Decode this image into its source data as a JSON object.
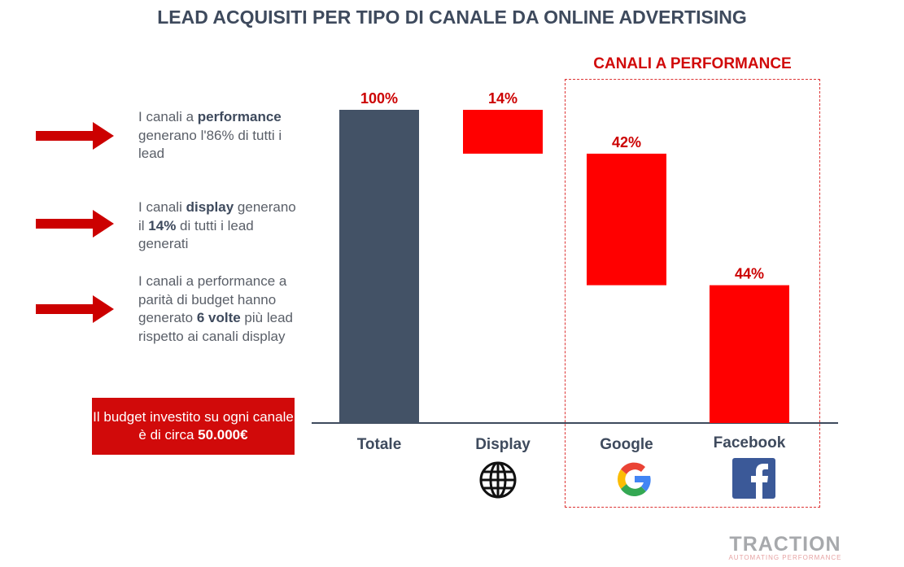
{
  "chart_data": {
    "type": "waterfall",
    "title": "LEAD ACQUISITI PER TIPO DI CANALE DA ONLINE ADVERTISING",
    "categories": [
      "Totale",
      "Display",
      "Google",
      "Facebook"
    ],
    "values": [
      100,
      14,
      42,
      44
    ],
    "labels": [
      "100%",
      "14%",
      "42%",
      "44%"
    ],
    "colors": [
      "#435266",
      "#ff0000",
      "#ff0000",
      "#ff0000"
    ],
    "ylim": [
      0,
      100
    ],
    "group_label": "CANALI A PERFORMANCE",
    "icons": [
      "",
      "globe-icon",
      "google-icon",
      "facebook-icon"
    ]
  },
  "notes": [
    {
      "pre": "I canali a ",
      "bold": "performance",
      "post": " generano l'86% di tutti i lead"
    },
    {
      "pre": "I canali ",
      "bold": "display",
      "mid": " generano il ",
      "bold2": "14%",
      "post": " di tutti i lead generati"
    },
    {
      "pre": "I canali a performance a parità di budget hanno generato ",
      "bold": "6 volte",
      "post": " più lead rispetto ai canali display"
    }
  ],
  "budget": {
    "text": "Il budget investito su ogni canale è di circa ",
    "bold": "50.000€"
  },
  "logo": {
    "name": "TRACTION",
    "tagline": "AUTOMATING PERFORMANCE"
  },
  "arrow_color": "#cc0000"
}
